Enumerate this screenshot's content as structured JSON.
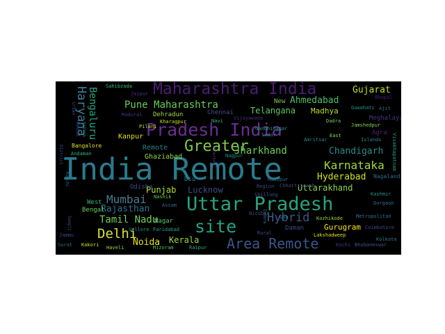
{
  "wordcloud": {
    "background": "#000000",
    "words": [
      {
        "text": "India Remote",
        "color": "#2a7b8e"
      },
      {
        "text": "Uttar Pradesh",
        "color": "#2aa37f"
      },
      {
        "text": "Pradesh India",
        "color": "#6a2f8e"
      },
      {
        "text": "Maharashtra India",
        "color": "#4b1e72"
      },
      {
        "text": "Greater",
        "color": "#7fcc4c"
      },
      {
        "text": "site",
        "color": "#20a486"
      },
      {
        "text": "Area Remote",
        "color": "#3a568c"
      },
      {
        "text": "Hybrid",
        "color": "#3b5a8c"
      },
      {
        "text": "Delhi",
        "color": "#d9e33a"
      },
      {
        "text": "Karnataka",
        "color": "#a6d93a"
      },
      {
        "text": "Mumbai",
        "color": "#4c7b92"
      },
      {
        "text": "Haryana",
        "color": "#3b7e9a"
      },
      {
        "text": "Bengaluru",
        "color": "#24a684"
      },
      {
        "text": "Pune Maharashtra",
        "color": "#6ccd5a"
      },
      {
        "text": "Tamil Nadu",
        "color": "#74d055"
      },
      {
        "text": "Jharkhand",
        "color": "#70cf57"
      },
      {
        "text": "Chandigarh",
        "color": "#2c8a8c"
      },
      {
        "text": "Hyderabad",
        "color": "#d2e21b"
      },
      {
        "text": "Ahmedabad",
        "color": "#4ac16d"
      },
      {
        "text": "Gujarat",
        "color": "#bddf26"
      },
      {
        "text": "Rajasthan",
        "color": "#2c738e"
      },
      {
        "text": "Noida",
        "color": "#e8e419"
      },
      {
        "text": "Uttarakhand",
        "color": "#8fd744"
      },
      {
        "text": "Telangana",
        "color": "#5ec962"
      },
      {
        "text": "Lucknow",
        "color": "#3e4a89"
      },
      {
        "text": "Punjab",
        "color": "#b5de2b"
      },
      {
        "text": "Kerala",
        "color": "#a2da37"
      },
      {
        "text": "Gurugram",
        "color": "#fde725"
      },
      {
        "text": "Madhya",
        "color": "#bade28"
      },
      {
        "text": "Ghaziabad",
        "color": "#95d840"
      },
      {
        "text": "Remote",
        "color": "#277f8e"
      },
      {
        "text": "Kanpur",
        "color": "#dde318"
      },
      {
        "text": "Dehradun",
        "color": "#a0da39"
      },
      {
        "text": "Chennai",
        "color": "#3b528b"
      },
      {
        "text": "Odisha",
        "color": "#3d4e8a"
      },
      {
        "text": "West",
        "color": "#35b779"
      },
      {
        "text": "Bengal",
        "color": "#6ece58"
      },
      {
        "text": "Nagar",
        "color": "#58c765"
      },
      {
        "text": "Meghalaya",
        "color": "#46337f"
      },
      {
        "text": "Agra",
        "color": "#482475"
      },
      {
        "text": "Nagaland",
        "color": "#2f6c8e"
      },
      {
        "text": "New",
        "color": "#7ad151"
      },
      {
        "text": "Diu",
        "color": "#287c8e"
      },
      {
        "text": "Daman",
        "color": "#3e4989"
      },
      {
        "text": "Kolkata",
        "color": "#2a788e"
      },
      {
        "text": "Bangalore",
        "color": "#d8e219"
      },
      {
        "text": "Andaman",
        "color": "#31b57b"
      },
      {
        "text": "Sahibzada",
        "color": "#40bd72"
      },
      {
        "text": "Jaipur",
        "color": "#443983"
      },
      {
        "text": "Madurai",
        "color": "#453581"
      },
      {
        "text": "Pilani",
        "color": "#b8de29"
      },
      {
        "text": "Kharagpur",
        "color": "#c8e020"
      },
      {
        "text": "Navi",
        "color": "#31b57b"
      },
      {
        "text": "Vijayawada",
        "color": "#472c7a"
      },
      {
        "text": "Gandhinagar",
        "color": "#1fa088"
      },
      {
        "text": "Bhopal",
        "color": "#482071"
      },
      {
        "text": "Guwahati",
        "color": "#1e9b8a"
      },
      {
        "text": "Ajit",
        "color": "#2e6f8e"
      },
      {
        "text": "Dadra",
        "color": "#73d056"
      },
      {
        "text": "Jamshedpur",
        "color": "#84d44b"
      },
      {
        "text": "East",
        "color": "#8bd646"
      },
      {
        "text": "Amritsar",
        "color": "#23898e"
      },
      {
        "text": "Islands",
        "color": "#24878e"
      },
      {
        "text": "Sadar",
        "color": "#287d8e"
      },
      {
        "text": "Visakhapatnam",
        "color": "#1fa187"
      },
      {
        "text": "Urban",
        "color": "#3d4e8a"
      },
      {
        "text": "Sikkim",
        "color": "#25848e"
      },
      {
        "text": "Nandal",
        "color": "#3b528b"
      },
      {
        "text": "District",
        "color": "#3b528b"
      },
      {
        "text": "Roorkee",
        "color": "#453882"
      },
      {
        "text": "Nagpur",
        "color": "#21918c"
      },
      {
        "text": "Ranchi",
        "color": "#2d708e"
      },
      {
        "text": "Region",
        "color": "#3e4a89"
      },
      {
        "text": "Chhattisgarh",
        "color": "#3f4788"
      },
      {
        "text": "Shillong",
        "color": "#3b528b"
      },
      {
        "text": "Kashmir",
        "color": "#1f968b"
      },
      {
        "text": "Gurgaon",
        "color": "#2c728e"
      },
      {
        "text": "Nashik",
        "color": "#6ccd5a"
      },
      {
        "text": "Assam",
        "color": "#31688e"
      },
      {
        "text": "Sangli",
        "color": "#3b528b"
      },
      {
        "text": "Metropolitan",
        "color": "#2d708e"
      },
      {
        "text": "Kozhikode",
        "color": "#95d840"
      },
      {
        "text": "Coimbatore",
        "color": "#3e4a89"
      },
      {
        "text": "Indore",
        "color": "#287c8e"
      },
      {
        "text": "Goa",
        "color": "#26828e"
      },
      {
        "text": "Nicobar",
        "color": "#3f4889"
      },
      {
        "text": "Rural",
        "color": "#3d4e8a"
      },
      {
        "text": "Lakshadweep",
        "color": "#d5e21a"
      },
      {
        "text": "Vellore",
        "color": "#1f988b"
      },
      {
        "text": "Faridabad",
        "color": "#22a785"
      },
      {
        "text": "Jammu",
        "color": "#3f4889"
      },
      {
        "text": "Surat",
        "color": "#2e6e8e"
      },
      {
        "text": "Kakori",
        "color": "#d0e11c"
      },
      {
        "text": "Haveli",
        "color": "#a5db36"
      },
      {
        "text": "Mizoram",
        "color": "#4ec36b"
      },
      {
        "text": "Raipur",
        "color": "#29af7f"
      },
      {
        "text": "Kochi",
        "color": "#443a83"
      },
      {
        "text": "Bhubaneswar",
        "color": "#3b528b"
      },
      {
        "text": "Manipur",
        "color": "#2c728e"
      }
    ]
  }
}
